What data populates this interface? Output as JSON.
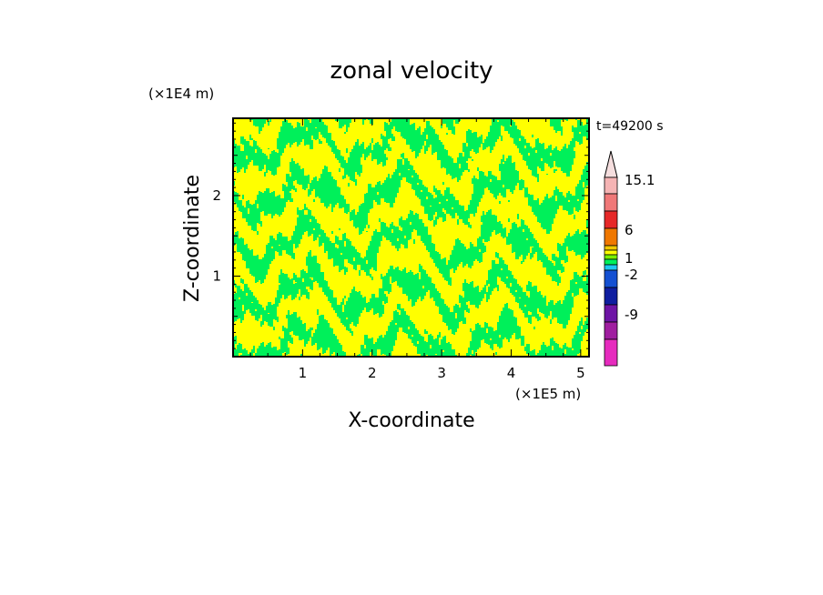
{
  "chart_data": {
    "type": "heatmap",
    "title": "zonal velocity",
    "xlabel": "X-coordinate",
    "ylabel": "Z-coordinate",
    "x_unit": "(×1E5 m)",
    "y_unit": "(×1E4 m)",
    "time_label": "t=49200 s",
    "xlim": [
      0,
      5.12
    ],
    "ylim": [
      0,
      2.96
    ],
    "x_ticks": [
      "1",
      "2",
      "3",
      "4",
      "5"
    ],
    "y_ticks": [
      "1",
      "2"
    ],
    "colorbar": {
      "labels": [
        "15.1",
        "6",
        "1",
        "-2",
        "-9"
      ],
      "levels": [
        {
          "color": "#e62bbe"
        },
        {
          "color": "#a01ea0"
        },
        {
          "color": "#6e14a5"
        },
        {
          "color": "#0f1ea0"
        },
        {
          "color": "#1450d2"
        },
        {
          "color": "#1ec8f0"
        },
        {
          "color": "#00f05a"
        },
        {
          "color": "#78f000"
        },
        {
          "color": "#ffff00"
        },
        {
          "color": "#f0c800"
        },
        {
          "color": "#f07800"
        },
        {
          "color": "#e62828"
        },
        {
          "color": "#f07878"
        },
        {
          "color": "#f5b4b4"
        }
      ],
      "extend_max": true
    },
    "field_colors": {
      "positive_weak": "#ffff00",
      "negative_weak": "#00f05a"
    },
    "grid": false
  }
}
